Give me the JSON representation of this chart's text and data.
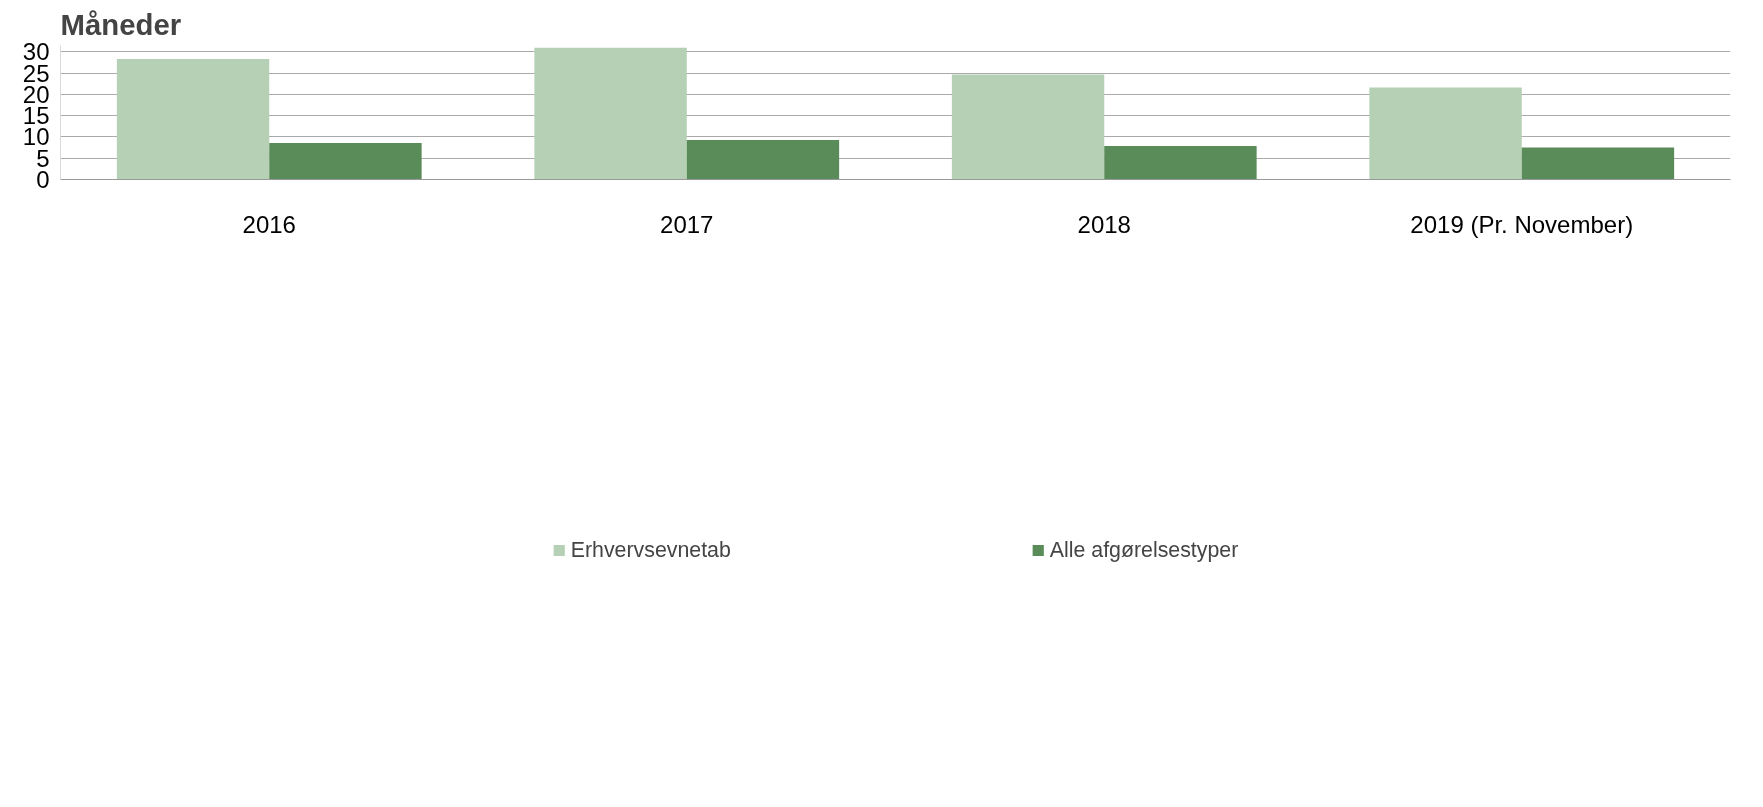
{
  "chart_data": {
    "type": "bar",
    "ylabel": "Måneder",
    "categories": [
      "2016",
      "2017",
      "2018",
      "2019 (Pr. November)"
    ],
    "series": [
      {
        "name": "Erhvervsevnetab",
        "color": "#b5d0b5",
        "values": [
          28.3,
          31.0,
          24.7,
          21.6
        ]
      },
      {
        "name": "Alle afgørelsestyper",
        "color": "#5a8c5a",
        "values": [
          8.6,
          9.3,
          7.9,
          7.5
        ]
      }
    ],
    "ylim": [
      0,
      31.5
    ],
    "yticks": [
      0,
      5,
      10,
      15,
      20,
      25,
      30
    ],
    "grid": "y",
    "legend": "bottom"
  }
}
